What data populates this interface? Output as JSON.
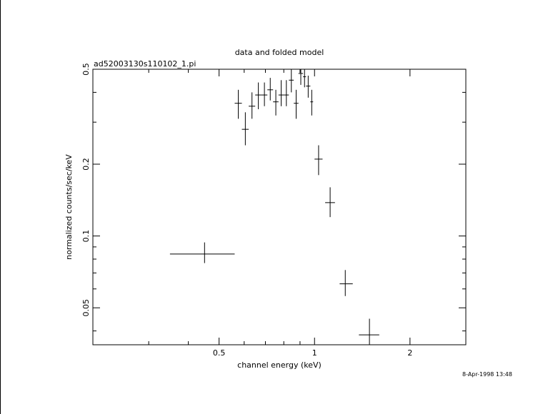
{
  "chart_data": {
    "type": "scatter",
    "title": "data and folded model",
    "subtitle": "ad52003130s110102_1.pi",
    "xlabel": "channel energy (keV)",
    "ylabel": "normalized counts/sec/keV",
    "xscale": "log",
    "yscale": "log",
    "xlim": [
      0.2,
      3.0
    ],
    "ylim": [
      0.035,
      0.5
    ],
    "xticks_major": [
      0.5,
      1,
      2
    ],
    "xtick_labels": [
      "0.5",
      "1",
      "2"
    ],
    "xticks_minor": [
      0.3,
      0.4,
      0.6,
      0.7,
      0.8,
      0.9,
      3.0
    ],
    "yticks_major": [
      0.05,
      0.1,
      0.2,
      0.5
    ],
    "ytick_labels": [
      "0.05",
      "0.1",
      "0.2",
      "0.5"
    ],
    "yticks_minor": [
      0.04,
      0.06,
      0.07,
      0.08,
      0.09,
      0.3,
      0.4
    ],
    "grid": false,
    "timestamp": "8-Apr-1998 13:48",
    "series": [
      {
        "points": [
          {
            "x": 0.45,
            "xerr": [
              0.35,
              0.56
            ],
            "y": 0.084,
            "yerr": [
              0.077,
              0.094
            ]
          },
          {
            "x": 0.575,
            "xerr": [
              0.56,
              0.59
            ],
            "y": 0.36,
            "yerr": [
              0.31,
              0.41
            ]
          },
          {
            "x": 0.605,
            "xerr": [
              0.59,
              0.62
            ],
            "y": 0.28,
            "yerr": [
              0.24,
              0.33
            ]
          },
          {
            "x": 0.635,
            "xerr": [
              0.62,
              0.65
            ],
            "y": 0.35,
            "yerr": [
              0.31,
              0.4
            ]
          },
          {
            "x": 0.665,
            "xerr": [
              0.65,
              0.68
            ],
            "y": 0.39,
            "yerr": [
              0.34,
              0.44
            ]
          },
          {
            "x": 0.695,
            "xerr": [
              0.68,
              0.71
            ],
            "y": 0.39,
            "yerr": [
              0.35,
              0.44
            ]
          },
          {
            "x": 0.725,
            "xerr": [
              0.71,
              0.74
            ],
            "y": 0.41,
            "yerr": [
              0.37,
              0.46
            ]
          },
          {
            "x": 0.755,
            "xerr": [
              0.74,
              0.77
            ],
            "y": 0.365,
            "yerr": [
              0.32,
              0.41
            ]
          },
          {
            "x": 0.785,
            "xerr": [
              0.77,
              0.8
            ],
            "y": 0.39,
            "yerr": [
              0.35,
              0.45
            ]
          },
          {
            "x": 0.815,
            "xerr": [
              0.8,
              0.83
            ],
            "y": 0.39,
            "yerr": [
              0.35,
              0.45
            ]
          },
          {
            "x": 0.845,
            "xerr": [
              0.83,
              0.86
            ],
            "y": 0.45,
            "yerr": [
              0.4,
              0.5
            ]
          },
          {
            "x": 0.875,
            "xerr": [
              0.86,
              0.89
            ],
            "y": 0.36,
            "yerr": [
              0.31,
              0.41
            ]
          },
          {
            "x": 0.905,
            "xerr": [
              0.89,
              0.92
            ],
            "y": 0.48,
            "yerr": [
              0.43,
              0.5
            ]
          },
          {
            "x": 0.93,
            "xerr": [
              0.92,
              0.94
            ],
            "y": 0.465,
            "yerr": [
              0.42,
              0.5
            ]
          },
          {
            "x": 0.955,
            "xerr": [
              0.94,
              0.97
            ],
            "y": 0.425,
            "yerr": [
              0.38,
              0.47
            ]
          },
          {
            "x": 0.98,
            "xerr": [
              0.97,
              0.99
            ],
            "y": 0.365,
            "yerr": [
              0.32,
              0.41
            ]
          },
          {
            "x": 1.03,
            "xerr": [
              1.0,
              1.06
            ],
            "y": 0.21,
            "yerr": [
              0.18,
              0.24
            ]
          },
          {
            "x": 1.12,
            "xerr": [
              1.08,
              1.16
            ],
            "y": 0.138,
            "yerr": [
              0.12,
              0.16
            ]
          },
          {
            "x": 1.25,
            "xerr": [
              1.2,
              1.32
            ],
            "y": 0.063,
            "yerr": [
              0.056,
              0.072
            ]
          },
          {
            "x": 1.49,
            "xerr": [
              1.38,
              1.6
            ],
            "y": 0.0385,
            "yerr": [
              0.035,
              0.045
            ]
          }
        ]
      }
    ]
  }
}
